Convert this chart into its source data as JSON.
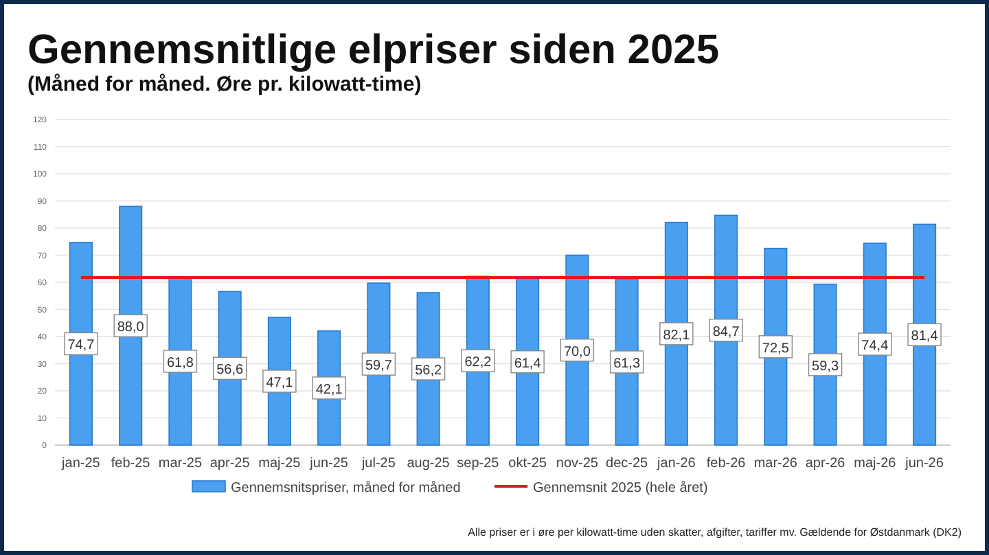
{
  "chart_data": {
    "type": "bar",
    "title": "Gennemsnitlige elpriser siden 2025",
    "subtitle": "(Måned for måned. Øre pr. kilowatt-time)",
    "categories": [
      "jan-25",
      "feb-25",
      "mar-25",
      "apr-25",
      "maj-25",
      "jun-25",
      "jul-25",
      "aug-25",
      "sep-25",
      "okt-25",
      "nov-25",
      "dec-25",
      "jan-26",
      "feb-26",
      "mar-26",
      "apr-26",
      "maj-26",
      "jun-26"
    ],
    "series": [
      {
        "name": "Gennemsnitspriser, måned for måned",
        "color": "#4a9ff0",
        "values": [
          74.7,
          88.0,
          61.8,
          56.6,
          47.1,
          42.1,
          59.7,
          56.2,
          62.2,
          61.4,
          70.0,
          61.3,
          82.1,
          84.7,
          72.5,
          59.3,
          74.4,
          81.4
        ],
        "value_labels": [
          "74,7",
          "88,0",
          "61,8",
          "56,6",
          "47,1",
          "42,1",
          "59,7",
          "56,2",
          "62,2",
          "61,4",
          "70,0",
          "61,3",
          "82,1",
          "84,7",
          "72,5",
          "59,3",
          "74,4",
          "81,4"
        ]
      },
      {
        "name": "Gennemsnit 2025 (hele året)",
        "type": "line",
        "color": "#e8141c",
        "values": [
          61.8,
          61.8,
          61.8,
          61.8,
          61.8,
          61.8,
          61.8,
          61.8,
          61.8,
          61.8,
          61.8,
          61.8,
          61.8,
          61.8,
          61.8,
          61.8,
          61.8,
          61.8
        ]
      }
    ],
    "ylim": [
      0,
      120
    ],
    "yticks": [
      0,
      10,
      20,
      30,
      40,
      50,
      60,
      70,
      80,
      90,
      100,
      110,
      120
    ],
    "grid": "y",
    "legend": "bottom",
    "marker": "none",
    "annotations": [
      "Alle priser er i øre per kilowatt-time uden skatter, afgifter, tariffer mv. Gældende for Østdanmark (DK2)"
    ]
  }
}
